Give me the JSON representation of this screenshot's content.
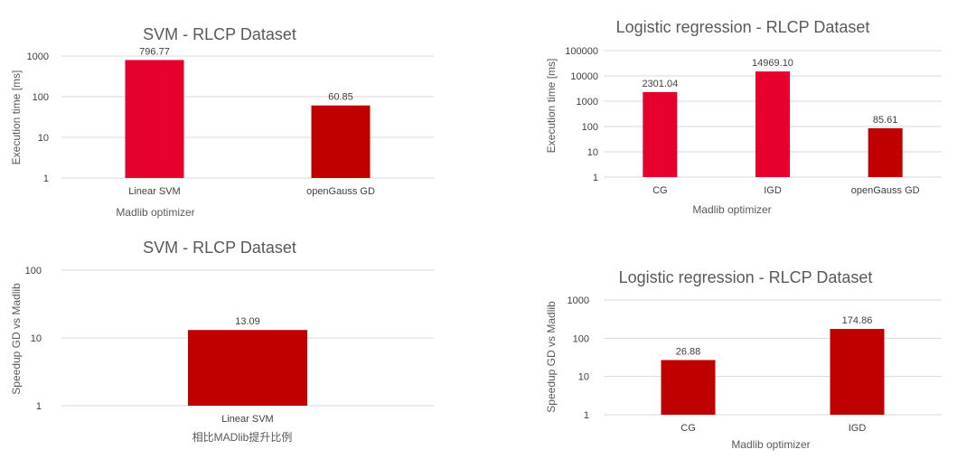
{
  "chart_data": [
    {
      "type": "bar",
      "title": "SVM - RLCP Dataset",
      "xlabel": "Madlib optimizer",
      "ylabel": "Execution time [ms]",
      "yscale": "log",
      "ylim": [
        1,
        1000
      ],
      "yticks": [
        "1",
        "10",
        "100",
        "1000"
      ],
      "categories": [
        "Linear SVM",
        "openGauss GD"
      ],
      "values": [
        796.77,
        60.85
      ],
      "value_labels": [
        "796.77",
        "60.85"
      ],
      "colors": [
        "#e8002d",
        "#c00000"
      ],
      "grid": true
    },
    {
      "type": "bar",
      "title": "Logistic regression - RLCP Dataset",
      "xlabel": "Madlib optimizer",
      "ylabel": "Execution time [ms]",
      "yscale": "log",
      "ylim": [
        1,
        100000
      ],
      "yticks": [
        "1",
        "10",
        "100",
        "1000",
        "10000",
        "100000"
      ],
      "categories": [
        "CG",
        "IGD",
        "openGauss GD"
      ],
      "values": [
        2301.04,
        14969.1,
        85.61
      ],
      "value_labels": [
        "2301.04",
        "14969.10",
        "85.61"
      ],
      "colors": [
        "#e8002d",
        "#e8002d",
        "#c00000"
      ],
      "grid": true
    },
    {
      "type": "bar",
      "title": "SVM - RLCP Dataset",
      "xlabel": "相比MADlib提升比例",
      "ylabel": "Speedup GD vs Madlib",
      "yscale": "log",
      "ylim": [
        1,
        100
      ],
      "yticks": [
        "1",
        "10",
        "100"
      ],
      "categories": [
        "Linear SVM"
      ],
      "values": [
        13.09
      ],
      "value_labels": [
        "13.09"
      ],
      "colors": [
        "#c00000"
      ],
      "grid": true
    },
    {
      "type": "bar",
      "title": "Logistic regression - RLCP Dataset",
      "xlabel": "Madlib optimizer",
      "ylabel": "Speedup GD vs Madlib",
      "yscale": "log",
      "ylim": [
        1,
        1000
      ],
      "yticks": [
        "1",
        "10",
        "100",
        "1000"
      ],
      "categories": [
        "CG",
        "IGD"
      ],
      "values": [
        26.88,
        174.86
      ],
      "value_labels": [
        "26.88",
        "174.86"
      ],
      "colors": [
        "#c00000",
        "#c00000"
      ],
      "grid": true
    }
  ]
}
